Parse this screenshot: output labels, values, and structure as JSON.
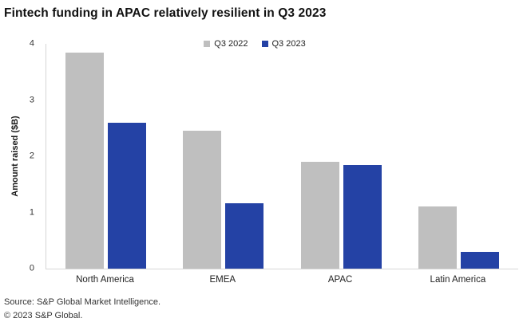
{
  "title": "Fintech funding in APAC relatively resilient in Q3 2023",
  "chart_data": {
    "type": "bar",
    "title": "Fintech funding in APAC relatively resilient in Q3 2023",
    "categories": [
      "North America",
      "EMEA",
      "APAC",
      "Latin America"
    ],
    "series": [
      {
        "name": "Q3 2022",
        "color": "#bfbfbf",
        "values": [
          3.85,
          2.45,
          1.9,
          1.1
        ]
      },
      {
        "name": "Q3 2023",
        "color": "#2442a5",
        "values": [
          2.6,
          1.17,
          1.85,
          0.3
        ]
      }
    ],
    "xlabel": "",
    "ylabel": "Amount raised ($B)",
    "ylim": [
      0,
      4
    ],
    "y_ticks": [
      0,
      1,
      2,
      3,
      4
    ],
    "grid": false,
    "legend_position": "top-center",
    "axis_color": "#d6d6d6"
  },
  "footer": {
    "source": "Source: S&P Global Market Intelligence.",
    "copyright": "© 2023 S&P Global."
  }
}
